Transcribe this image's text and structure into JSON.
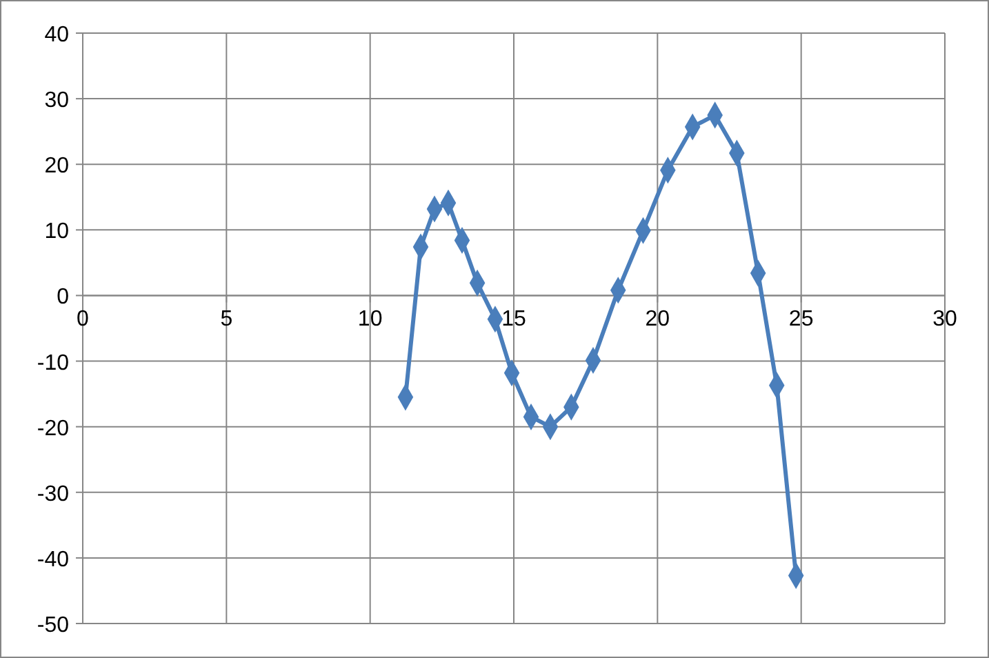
{
  "chart_data": {
    "type": "line",
    "x": [
      11.23,
      11.76,
      12.24,
      12.72,
      13.2,
      13.73,
      14.35,
      14.93,
      15.6,
      16.27,
      17.0,
      17.76,
      18.63,
      19.5,
      20.36,
      21.22,
      22.0,
      22.76,
      23.5,
      24.15,
      24.82
    ],
    "series": [
      {
        "color": "#4a7ebb",
        "values": [
          -15.5,
          7.4,
          13.2,
          14.1,
          8.4,
          1.9,
          -3.6,
          -11.8,
          -18.5,
          -20,
          -17,
          -9.9,
          0.8,
          9.9,
          19.1,
          25.7,
          27.5,
          21.7,
          3.4,
          -13.7,
          -42.7
        ]
      }
    ],
    "xlim": [
      0,
      30
    ],
    "xticks": [
      0,
      5,
      10,
      15,
      20,
      25,
      30
    ],
    "ylim": [
      -50,
      40
    ],
    "yticks": [
      -50,
      -40,
      -30,
      -20,
      -10,
      0,
      10,
      20,
      30,
      40
    ],
    "grid": true,
    "marker": "diamond",
    "line_style": "solid"
  }
}
